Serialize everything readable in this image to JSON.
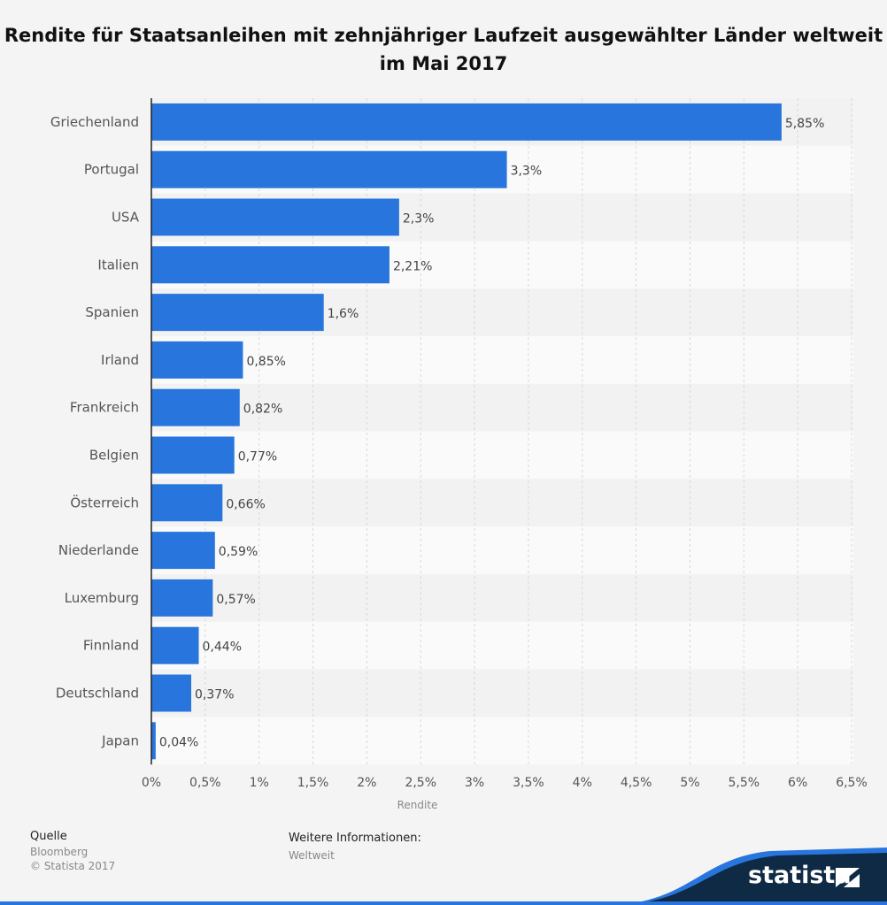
{
  "chart_data": {
    "type": "bar",
    "orientation": "horizontal",
    "title": "Rendite für Staatsanleihen mit zehnjähriger Laufzeit ausgewählter Länder weltweit im Mai 2017",
    "categories": [
      "Griechenland",
      "Portugal",
      "USA",
      "Italien",
      "Spanien",
      "Irland",
      "Frankreich",
      "Belgien",
      "Österreich",
      "Niederlande",
      "Luxemburg",
      "Finnland",
      "Deutschland",
      "Japan"
    ],
    "values": [
      5.85,
      3.3,
      2.3,
      2.21,
      1.6,
      0.85,
      0.82,
      0.77,
      0.66,
      0.59,
      0.57,
      0.44,
      0.37,
      0.04
    ],
    "value_labels": [
      "5,85%",
      "3,3%",
      "2,3%",
      "2,21%",
      "1,6%",
      "0,85%",
      "0,82%",
      "0,77%",
      "0,66%",
      "0,59%",
      "0,57%",
      "0,44%",
      "0,37%",
      "0,04%"
    ],
    "xlabel": "Rendite",
    "ylabel": "",
    "xlim": [
      0,
      6.5
    ],
    "xticks": [
      0,
      0.5,
      1,
      1.5,
      2,
      2.5,
      3,
      3.5,
      4,
      4.5,
      5,
      5.5,
      6,
      6.5
    ],
    "xtick_labels": [
      "0%",
      "0,5%",
      "1%",
      "1,5%",
      "2%",
      "2,5%",
      "3%",
      "3,5%",
      "4%",
      "4,5%",
      "5%",
      "5,5%",
      "6%",
      "6,5%"
    ],
    "grid": true,
    "bar_color": "#2876dd"
  },
  "footer": {
    "source_heading": "Quelle",
    "source": "Bloomberg",
    "copyright": "© Statista 2017",
    "info_heading": "Weitere Informationen:",
    "info": "Weltweit",
    "brand": "statista"
  },
  "colors": {
    "brand_dark": "#0f2a45",
    "brand_blue": "#2876dd"
  }
}
